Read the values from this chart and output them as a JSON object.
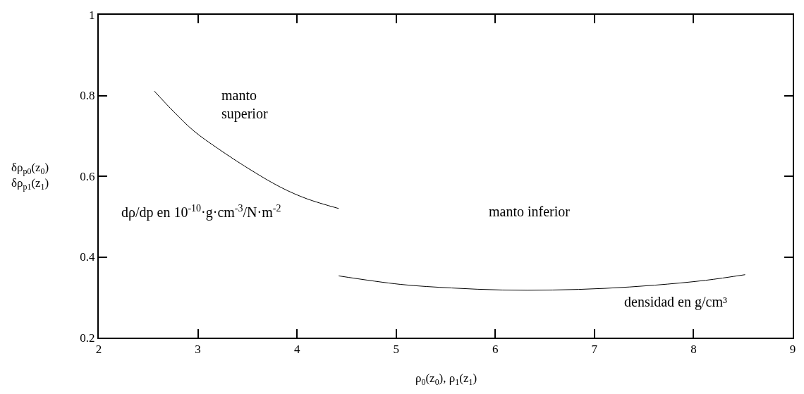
{
  "chart_data": {
    "type": "line",
    "xlabel": "ρ$_{0}$(z$_{0}$), ρ$_{1}$(z$_{1}$)",
    "ylabel": "δρ$_{p0}$(z$_{0}$)\nδρ$_{p1}$(z$_{1}$)",
    "series": [
      {
        "color": "#000000",
        "x": [
          2.56,
          2.76,
          2.96,
          3.2,
          3.53,
          3.84,
          4.1,
          4.42
        ],
        "values": [
          0.811,
          0.759,
          0.712,
          0.669,
          0.616,
          0.572,
          0.544,
          0.52
        ]
      },
      {
        "color": "#000000",
        "x": [
          4.42,
          5.04,
          5.56,
          6.07,
          6.58,
          7.1,
          7.61,
          8.12,
          8.52
        ],
        "values": [
          0.353,
          0.332,
          0.323,
          0.318,
          0.318,
          0.322,
          0.33,
          0.342,
          0.356
        ]
      }
    ],
    "annotations": [
      "manto\nsuperior",
      "manto inferior",
      "densidad en g/cm³",
      "dρ/dp en 10$^{-10}$·g·cm$^{-3}$/N·m$^{-2}$"
    ],
    "xlim": [
      2,
      9
    ],
    "xticks": [
      2,
      3,
      4,
      5,
      6,
      7,
      8,
      9
    ],
    "ylim": [
      0.2,
      1
    ],
    "yticks": [
      0.2,
      0.4,
      0.6,
      0.8,
      1
    ],
    "marker": "none",
    "line_style": "solid"
  }
}
